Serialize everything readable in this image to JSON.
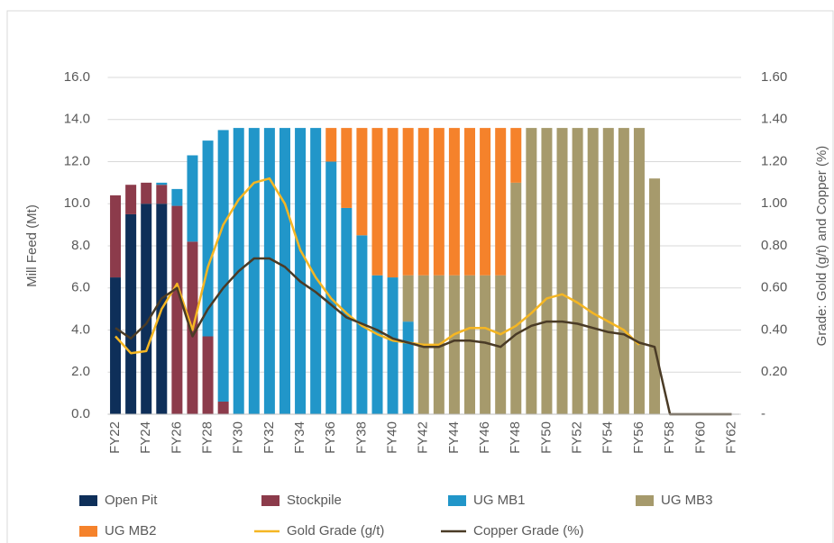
{
  "chart_data": {
    "type": "bar",
    "stacked": true,
    "y_label": "Mill Feed (Mt)",
    "y2_label": "Grade: Gold (g/t) and Copper (%)",
    "categories": [
      "FY22",
      null,
      "FY24",
      null,
      "FY26",
      null,
      "FY28",
      null,
      "FY30",
      null,
      "FY32",
      null,
      "FY34",
      null,
      "FY36",
      null,
      "FY38",
      null,
      "FY40",
      null,
      "FY42",
      null,
      "FY44",
      null,
      "FY46",
      null,
      "FY48",
      null,
      "FY50",
      null,
      "FY52",
      null,
      "FY54",
      null,
      "FY56",
      null,
      "FY58",
      null,
      "FY60",
      null,
      "FY62"
    ],
    "series": [
      {
        "name": "Open Pit",
        "type": "bar",
        "color": "#0e2f59",
        "values": [
          6.5,
          9.5,
          10.0,
          10.0,
          0,
          0,
          0,
          0,
          0,
          0,
          0,
          0,
          0,
          0,
          0,
          0,
          0,
          0,
          0,
          0,
          0,
          0,
          0,
          0,
          0,
          0,
          0,
          0,
          0,
          0,
          0,
          0,
          0,
          0,
          0,
          0,
          0,
          0,
          0,
          0,
          0
        ]
      },
      {
        "name": "Stockpile",
        "type": "bar",
        "color": "#8c3b4b",
        "values": [
          3.9,
          1.4,
          1.0,
          0.9,
          9.9,
          8.2,
          3.7,
          0.6,
          0,
          0,
          0,
          0,
          0,
          0,
          0,
          0,
          0,
          0,
          0,
          0,
          0,
          0,
          0,
          0,
          0,
          0,
          0,
          0,
          0,
          0,
          0,
          0,
          0,
          0,
          0,
          0,
          0,
          0,
          0,
          0,
          0
        ]
      },
      {
        "name": "UG MB1",
        "type": "bar",
        "color": "#2196c9",
        "values": [
          0,
          0,
          0,
          0.1,
          0.8,
          4.1,
          9.3,
          12.9,
          13.6,
          13.6,
          13.6,
          13.6,
          13.6,
          13.6,
          12.0,
          9.8,
          8.5,
          6.6,
          6.5,
          4.4,
          0,
          0,
          0,
          0,
          0,
          0,
          0,
          0,
          0,
          0,
          0,
          0,
          0,
          0,
          0,
          0,
          0,
          0,
          0,
          0,
          0
        ]
      },
      {
        "name": "UG MB3",
        "type": "bar",
        "color": "#a69a6c",
        "values": [
          0,
          0,
          0,
          0,
          0,
          0,
          0,
          0,
          0,
          0,
          0,
          0,
          0,
          0,
          0,
          0,
          0,
          0,
          0,
          2.2,
          6.6,
          6.6,
          6.6,
          6.6,
          6.6,
          6.6,
          11.0,
          13.6,
          13.6,
          13.6,
          13.6,
          13.6,
          13.6,
          13.6,
          13.6,
          11.2,
          0,
          0,
          0,
          0,
          0
        ]
      },
      {
        "name": "UG MB2",
        "type": "bar",
        "color": "#f5822b",
        "values": [
          0,
          0,
          0,
          0,
          0,
          0,
          0,
          0,
          0,
          0,
          0,
          0,
          0,
          0,
          1.6,
          3.8,
          5.1,
          7.0,
          7.1,
          7.0,
          7.0,
          7.0,
          7.0,
          7.0,
          7.0,
          7.0,
          2.6,
          0,
          0,
          0,
          0,
          0,
          0,
          0,
          0,
          0,
          0,
          0,
          0,
          0,
          0
        ]
      },
      {
        "name": "Gold Grade (g/t)",
        "type": "line",
        "axis": "y2",
        "color": "#f5b623",
        "values": [
          0.37,
          0.29,
          0.3,
          0.5,
          0.62,
          0.4,
          0.7,
          0.9,
          1.02,
          1.1,
          1.12,
          1.0,
          0.78,
          0.65,
          0.55,
          0.48,
          0.42,
          0.38,
          0.35,
          0.34,
          0.33,
          0.33,
          0.38,
          0.41,
          0.41,
          0.38,
          0.42,
          0.48,
          0.55,
          0.57,
          0.53,
          0.48,
          0.44,
          0.4,
          0.33,
          null,
          null,
          null,
          null,
          null,
          null
        ]
      },
      {
        "name": "Copper Grade (%)",
        "type": "line",
        "axis": "y2",
        "color": "#4a3b26",
        "values": [
          0.41,
          0.36,
          0.43,
          0.55,
          0.6,
          0.37,
          0.5,
          0.6,
          0.68,
          0.74,
          0.74,
          0.7,
          0.63,
          0.58,
          0.52,
          0.46,
          0.43,
          0.4,
          0.36,
          0.34,
          0.32,
          0.32,
          0.35,
          0.35,
          0.34,
          0.32,
          0.38,
          0.42,
          0.44,
          0.44,
          0.43,
          0.41,
          0.39,
          0.38,
          0.34,
          0.32,
          0,
          0,
          0,
          0,
          0
        ]
      }
    ],
    "ylim": [
      0,
      16
    ],
    "yticks": [
      {
        "value": 0,
        "label": "0.0"
      },
      {
        "value": 2,
        "label": "2.0"
      },
      {
        "value": 4,
        "label": "4.0"
      },
      {
        "value": 6,
        "label": "6.0"
      },
      {
        "value": 8,
        "label": "8.0"
      },
      {
        "value": 10,
        "label": "10.0"
      },
      {
        "value": 12,
        "label": "12.0"
      },
      {
        "value": 14,
        "label": "14.0"
      },
      {
        "value": 16,
        "label": "16.0"
      }
    ],
    "y2lim": [
      0,
      1.6
    ],
    "y2ticks": [
      {
        "value": 0,
        "label": "-"
      },
      {
        "value": 0.2,
        "label": "0.20"
      },
      {
        "value": 0.4,
        "label": "0.40"
      },
      {
        "value": 0.6,
        "label": "0.60"
      },
      {
        "value": 0.8,
        "label": "0.80"
      },
      {
        "value": 1.0,
        "label": "1.00"
      },
      {
        "value": 1.2,
        "label": "1.20"
      },
      {
        "value": 1.4,
        "label": "1.40"
      },
      {
        "value": 1.6,
        "label": "1.60"
      }
    ],
    "grid": true,
    "legend": "bottom"
  }
}
